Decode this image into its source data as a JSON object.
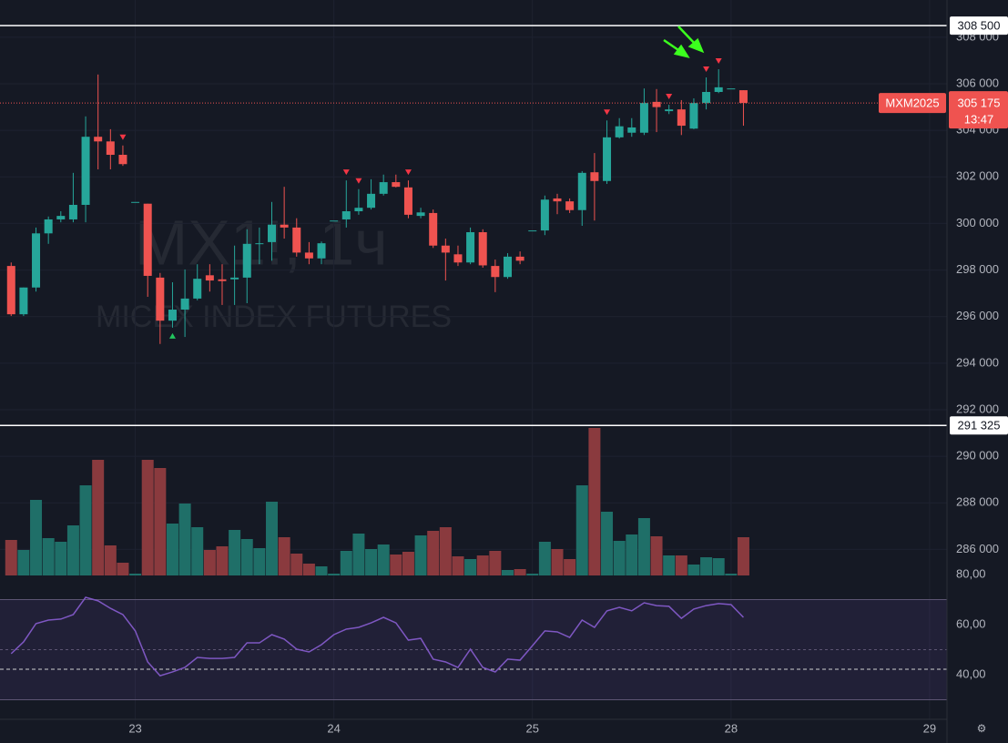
{
  "chart_data": {
    "type": "candlestick",
    "watermark_title": "MX1!, 1ч",
    "watermark_subtitle": "MICEX INDEX FUTURES",
    "symbol": "MXM2025",
    "countdown": "13:47",
    "last_price": {
      "value": 305175,
      "label": "305 175"
    },
    "ohlc": [
      [
        298175,
        298325,
        296025,
        296100
      ],
      [
        296100,
        297250,
        296025,
        297250
      ],
      [
        297250,
        299825,
        297075,
        299575
      ],
      [
        299575,
        300300,
        299125,
        300175
      ],
      [
        300175,
        300525,
        300050,
        300325
      ],
      [
        300175,
        302175,
        300050,
        300800
      ],
      [
        300800,
        304600,
        300050,
        303725
      ],
      [
        303725,
        306400,
        302325,
        303525
      ],
      [
        303525,
        304050,
        302325,
        302950
      ],
      [
        302950,
        303350,
        302475,
        302550
      ],
      [
        300925,
        300925,
        300925,
        300925
      ],
      [
        300850,
        300850,
        296850,
        297750
      ],
      [
        297675,
        297875,
        294825,
        295825
      ],
      [
        295825,
        297475,
        295525,
        296300
      ],
      [
        296300,
        298025,
        295125,
        296775
      ],
      [
        296775,
        298250,
        296700,
        297625
      ],
      [
        297775,
        298250,
        297075,
        297550
      ],
      [
        297600,
        298250,
        296500,
        297525
      ],
      [
        297600,
        299050,
        296500,
        297675
      ],
      [
        297675,
        299750,
        296575,
        299125
      ],
      [
        299125,
        299825,
        298250,
        299150
      ],
      [
        299200,
        300925,
        298400,
        299950
      ],
      [
        299950,
        301575,
        299350,
        299825
      ],
      [
        299825,
        300225,
        298575,
        298750
      ],
      [
        298750,
        299200,
        298250,
        298500
      ],
      [
        298500,
        299225,
        298250,
        299150
      ],
      [
        300125,
        300125,
        300125,
        300125
      ],
      [
        300175,
        301850,
        299825,
        300525
      ],
      [
        300525,
        301475,
        300375,
        300675
      ],
      [
        300675,
        301900,
        300600,
        301275
      ],
      [
        301275,
        302100,
        301200,
        301775
      ],
      [
        301775,
        302100,
        301550,
        301575
      ],
      [
        301550,
        301850,
        300225,
        300375
      ],
      [
        300325,
        300675,
        300225,
        300475
      ],
      [
        300450,
        300600,
        298950,
        299050
      ],
      [
        299050,
        299350,
        297550,
        298750
      ],
      [
        298675,
        299050,
        298175,
        298325
      ],
      [
        298325,
        299825,
        298250,
        299625
      ],
      [
        299625,
        299750,
        298100,
        298200
      ],
      [
        298175,
        298450,
        297050,
        297700
      ],
      [
        297700,
        298725,
        297625,
        298575
      ],
      [
        298575,
        298800,
        298250,
        298400
      ],
      [
        299700,
        299700,
        299700,
        299700
      ],
      [
        299700,
        301200,
        299500,
        301025
      ],
      [
        301075,
        301275,
        300400,
        300950
      ],
      [
        300950,
        301075,
        300450,
        300575
      ],
      [
        300575,
        302250,
        299900,
        302175
      ],
      [
        302200,
        303025,
        300125,
        301825
      ],
      [
        301825,
        304425,
        301700,
        303700
      ],
      [
        303700,
        304525,
        303650,
        304175
      ],
      [
        303900,
        304525,
        303725,
        304125
      ],
      [
        303900,
        305800,
        303800,
        305175
      ],
      [
        305225,
        305775,
        303925,
        305000
      ],
      [
        304825,
        305100,
        304700,
        304900
      ],
      [
        304900,
        305300,
        303800,
        304200
      ],
      [
        304075,
        305375,
        304050,
        305175
      ],
      [
        305175,
        306275,
        304900,
        305650
      ],
      [
        305650,
        306625,
        305600,
        305850
      ],
      [
        305800,
        305800,
        305800,
        305800
      ],
      [
        305725,
        305725,
        304200,
        305175
      ]
    ],
    "volume": [
      39,
      28,
      83,
      41,
      37,
      55,
      99,
      127,
      33,
      14,
      2,
      127,
      118,
      57,
      79,
      53,
      28,
      32,
      50,
      40,
      30,
      81,
      42,
      24,
      13,
      10,
      2,
      27,
      46,
      29,
      34,
      23,
      26,
      44,
      49,
      53,
      21,
      18,
      22,
      27,
      6,
      7,
      2,
      37,
      29,
      18,
      99,
      162,
      70,
      38,
      45,
      63,
      43,
      22,
      22,
      12,
      20,
      19,
      2,
      42
    ],
    "vlim": [
      0,
      170
    ],
    "sell_signals": [
      9,
      27,
      28,
      32,
      48,
      53,
      56,
      57
    ],
    "buy_signals": [
      13
    ],
    "hlines": [
      {
        "value": 308500,
        "label": "308 500"
      },
      {
        "value": 291325,
        "label": "291 325"
      }
    ],
    "xlim": [
      -0.9,
      75.4
    ],
    "xticks": [
      {
        "value": 10,
        "label": "23"
      },
      {
        "value": 26,
        "label": "24"
      },
      {
        "value": 42,
        "label": "25"
      },
      {
        "value": 58,
        "label": "28"
      },
      {
        "value": 74,
        "label": "29"
      }
    ],
    "ylim": [
      284880,
      309600
    ],
    "yticks": [
      {
        "value": 308000,
        "label": "308 000"
      },
      {
        "value": 306000,
        "label": "306 000"
      },
      {
        "value": 304000,
        "label": "304 000"
      },
      {
        "value": 302000,
        "label": "302 000"
      },
      {
        "value": 300000,
        "label": "300 000"
      },
      {
        "value": 298000,
        "label": "298 000"
      },
      {
        "value": 296000,
        "label": "296 000"
      },
      {
        "value": 294000,
        "label": "294 000"
      },
      {
        "value": 292000,
        "label": "292 000"
      },
      {
        "value": 290000,
        "label": "290 000"
      },
      {
        "value": 288000,
        "label": "288 000"
      },
      {
        "value": 286000,
        "label": "286 000"
      }
    ],
    "grid": true,
    "colors": {
      "up": "#26a69a",
      "down": "#ef5350",
      "up_volume": "#1f6f68",
      "down_volume": "#8a3a3e"
    },
    "rsi": {
      "values": [
        48.4,
        53.1,
        60.4,
        61.8,
        62.2,
        64.0,
        70.9,
        69.5,
        66.5,
        64.0,
        57.5,
        45.1,
        39.6,
        41.1,
        42.9,
        46.9,
        46.5,
        46.5,
        46.9,
        52.7,
        52.7,
        56.0,
        54.2,
        50.2,
        49.1,
        52.0,
        56.0,
        58.2,
        58.9,
        60.7,
        62.9,
        60.7,
        53.8,
        54.5,
        46.2,
        45.1,
        42.9,
        50.2,
        42.9,
        41.1,
        46.2,
        45.8,
        51.6,
        57.5,
        57.1,
        54.9,
        61.8,
        58.9,
        65.5,
        66.9,
        65.5,
        68.7,
        67.6,
        67.3,
        62.5,
        66.2,
        67.6,
        68.4,
        68.0,
        62.9
      ],
      "color": "#7e57c2",
      "ylim": [
        22,
        80.5
      ],
      "yticks": [
        {
          "value": 80,
          "label": "80,00"
        },
        {
          "value": 60,
          "label": "60,00"
        },
        {
          "value": 40,
          "label": "40,00"
        }
      ],
      "band": [
        30,
        70
      ],
      "midline": 50,
      "dashed_level": 42.2
    }
  }
}
